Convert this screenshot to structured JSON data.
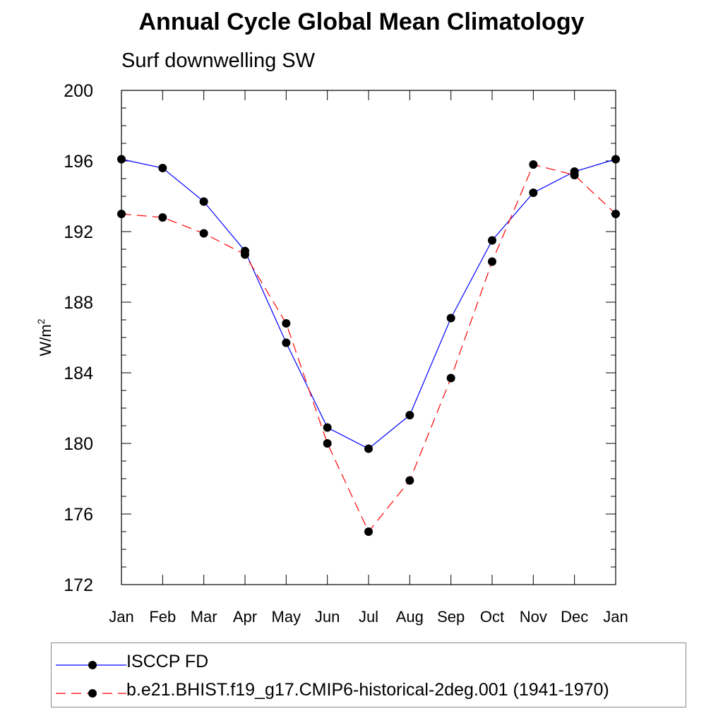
{
  "header": {
    "title": "Annual Cycle Global Mean Climatology",
    "subtitle": "Surf downwelling SW"
  },
  "chart_data": {
    "type": "line",
    "title": "Annual Cycle Global Mean Climatology",
    "subtitle": "Surf downwelling SW",
    "xlabel": "",
    "ylabel": "W/m²",
    "ylabel_base": "W/m",
    "ylabel_sup": "2",
    "categories": [
      "Jan",
      "Feb",
      "Mar",
      "Apr",
      "May",
      "Jun",
      "Jul",
      "Aug",
      "Sep",
      "Oct",
      "Nov",
      "Dec",
      "Jan"
    ],
    "ylim": [
      172,
      200
    ],
    "yticks": [
      172,
      176,
      180,
      184,
      188,
      192,
      196,
      200
    ],
    "ytick_labels": [
      "172",
      "176",
      "180",
      "184",
      "188",
      "192",
      "196",
      "200"
    ],
    "grid": false,
    "legend_position": "bottom",
    "series": [
      {
        "name": "ISCCP FD",
        "color": "#0000ff",
        "line_style": "solid",
        "marker": "filled-circle",
        "values": [
          196.1,
          195.6,
          193.7,
          190.9,
          185.7,
          180.9,
          179.7,
          181.6,
          187.1,
          191.5,
          194.2,
          195.4,
          196.1
        ]
      },
      {
        "name": "b.e21.BHIST.f19_g17.CMIP6-historical-2deg.001 (1941-1970)",
        "color": "#ff0000",
        "line_style": "dashed",
        "marker": "filled-circle",
        "values": [
          193.0,
          192.8,
          191.9,
          190.7,
          186.8,
          180.0,
          175.0,
          177.9,
          183.7,
          190.3,
          195.8,
          195.2,
          193.0
        ]
      }
    ]
  }
}
